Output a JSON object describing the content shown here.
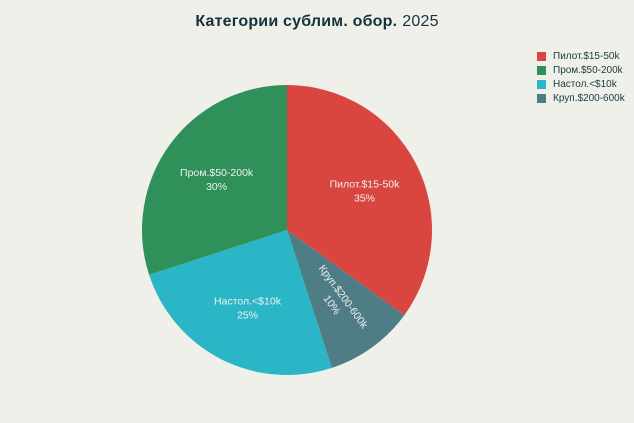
{
  "page": {
    "background_color": "#eff0ea",
    "title_color": "#15323a",
    "legend_text_color": "#1d3a41"
  },
  "header": {
    "title_bold": "Категории сублим. обор.",
    "title_year": "2025"
  },
  "chart_data": {
    "type": "pie",
    "title": "Категории сублим. обор. 2025",
    "legend_position": "top-right",
    "labels_inside": true,
    "inside_label_color": "#edf2ec",
    "start_angle": "top (12 o'clock)",
    "direction": "clockwise",
    "draw_order_clockwise_from_top": [
      0,
      3,
      2,
      1
    ],
    "slices": [
      {
        "label": "Пилот.$15-50k",
        "value": 35,
        "percent_label": "35%",
        "color": "#d9463f"
      },
      {
        "label": "Пром.$50-200k",
        "value": 30,
        "percent_label": "30%",
        "color": "#2f9159"
      },
      {
        "label": "Настол.<$10k",
        "value": 25,
        "percent_label": "25%",
        "color": "#2bb6c7"
      },
      {
        "label": "Круп.$200-600k",
        "value": 10,
        "percent_label": "10%",
        "color": "#4e7d86"
      }
    ]
  }
}
